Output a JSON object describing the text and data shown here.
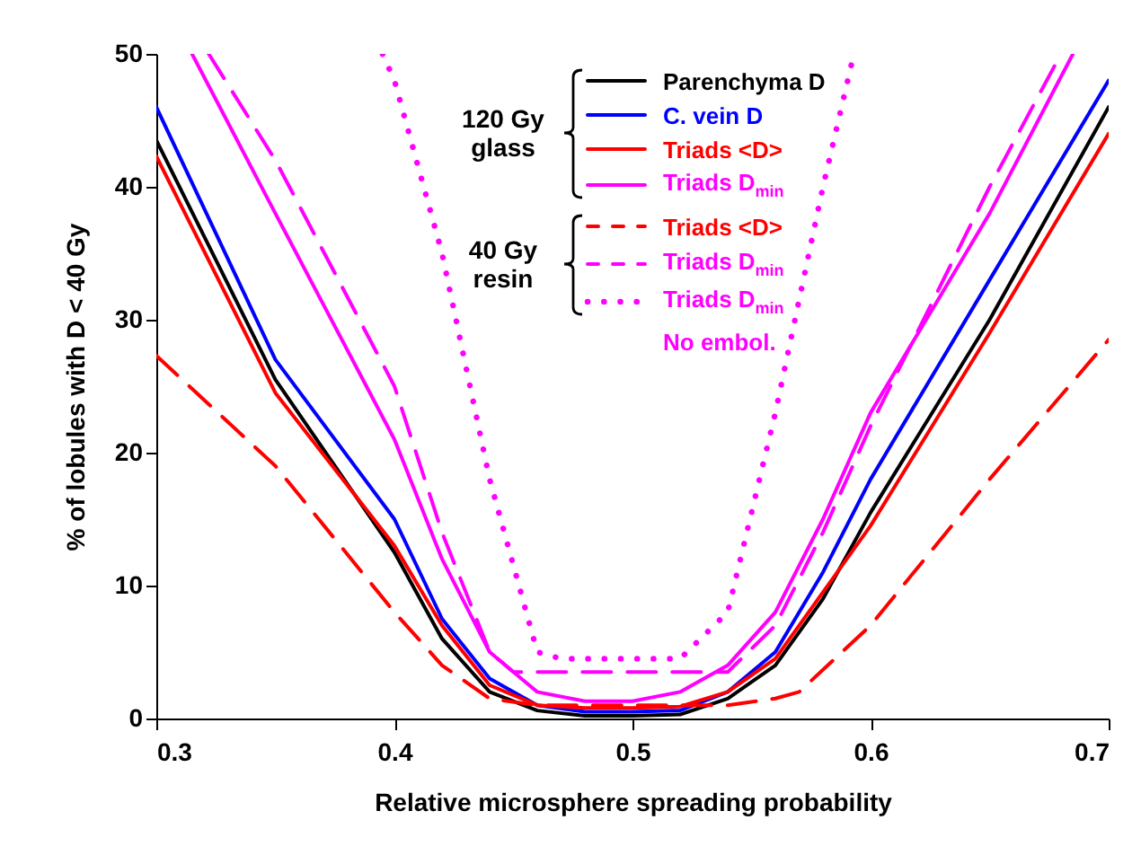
{
  "chart_data": {
    "type": "line",
    "xlabel": "Relative microsphere spreading probability",
    "ylabel": "% of lobules with D < 40 Gy",
    "xlim": [
      0.3,
      0.7
    ],
    "ylim": [
      0,
      50
    ],
    "xticks": [
      0.3,
      0.4,
      0.5,
      0.6,
      0.7
    ],
    "yticks": [
      0,
      10,
      20,
      30,
      40,
      50
    ],
    "grid": false,
    "legend": "top",
    "annotations": [
      "120 Gy glass",
      "40 Gy resin",
      "No embol."
    ],
    "series": [
      {
        "name": "Parenchyma D",
        "color": "#000000",
        "line_style": "solid",
        "x": [
          0.3,
          0.35,
          0.4,
          0.42,
          0.44,
          0.46,
          0.48,
          0.5,
          0.52,
          0.54,
          0.56,
          0.58,
          0.6,
          0.65,
          0.7
        ],
        "values": [
          43.5,
          25.5,
          12.5,
          6,
          2,
          0.6,
          0.2,
          0.2,
          0.3,
          1.5,
          4,
          9,
          15.5,
          30,
          46
        ]
      },
      {
        "name": "C. vein D",
        "color": "#0000ff",
        "line_style": "solid",
        "x": [
          0.3,
          0.35,
          0.4,
          0.42,
          0.44,
          0.46,
          0.48,
          0.5,
          0.52,
          0.54,
          0.56,
          0.58,
          0.6,
          0.65,
          0.7
        ],
        "values": [
          46,
          27,
          15,
          7.5,
          3,
          1,
          0.5,
          0.5,
          0.6,
          2,
          5,
          11,
          18,
          33,
          48
        ]
      },
      {
        "name": "Triads <D>",
        "color": "#ff0000",
        "line_style": "solid",
        "x": [
          0.3,
          0.35,
          0.4,
          0.42,
          0.44,
          0.46,
          0.48,
          0.5,
          0.52,
          0.54,
          0.56,
          0.58,
          0.6,
          0.65,
          0.7
        ],
        "values": [
          42.3,
          24.5,
          13,
          7,
          2.5,
          1,
          0.8,
          0.8,
          0.9,
          2,
          4.5,
          9.5,
          14.5,
          29,
          44
        ]
      },
      {
        "name": "Triads D$_{min}$",
        "color": "#ff00ff",
        "line_style": "solid",
        "x": [
          0.315,
          0.35,
          0.4,
          0.42,
          0.44,
          0.46,
          0.48,
          0.5,
          0.52,
          0.54,
          0.56,
          0.58,
          0.6,
          0.65,
          0.685
        ],
        "values": [
          50,
          38,
          21,
          12,
          5,
          2,
          1.3,
          1.3,
          2,
          4,
          8,
          15,
          23,
          38,
          50
        ]
      },
      {
        "name": "Triads <D>",
        "color": "#ff0000",
        "line_style": "dashed",
        "x": [
          0.3,
          0.35,
          0.4,
          0.42,
          0.44,
          0.46,
          0.5,
          0.54,
          0.56,
          0.57,
          0.6,
          0.65,
          0.7
        ],
        "values": [
          27.3,
          19,
          8,
          4,
          1.5,
          1,
          1,
          1,
          1.5,
          2,
          7,
          18,
          28.5
        ]
      },
      {
        "name": "Triads D$_{min}$",
        "color": "#ff00ff",
        "line_style": "dashed",
        "x": [
          0.322,
          0.35,
          0.4,
          0.42,
          0.44,
          0.45,
          0.46,
          0.5,
          0.54,
          0.56,
          0.58,
          0.6,
          0.65,
          0.68
        ],
        "values": [
          50,
          42,
          25,
          14,
          5,
          3.5,
          3.5,
          3.5,
          3.5,
          7,
          14,
          22,
          40,
          50
        ]
      },
      {
        "name": "Triads D$_{min}$",
        "color": "#ff00ff",
        "line_style": "dotted",
        "x": [
          0.395,
          0.4,
          0.42,
          0.44,
          0.46,
          0.47,
          0.5,
          0.52,
          0.54,
          0.56,
          0.58,
          0.593
        ],
        "values": [
          50,
          48,
          35,
          18,
          5,
          4.5,
          4.5,
          4.5,
          8,
          23,
          40,
          50
        ]
      }
    ]
  }
}
